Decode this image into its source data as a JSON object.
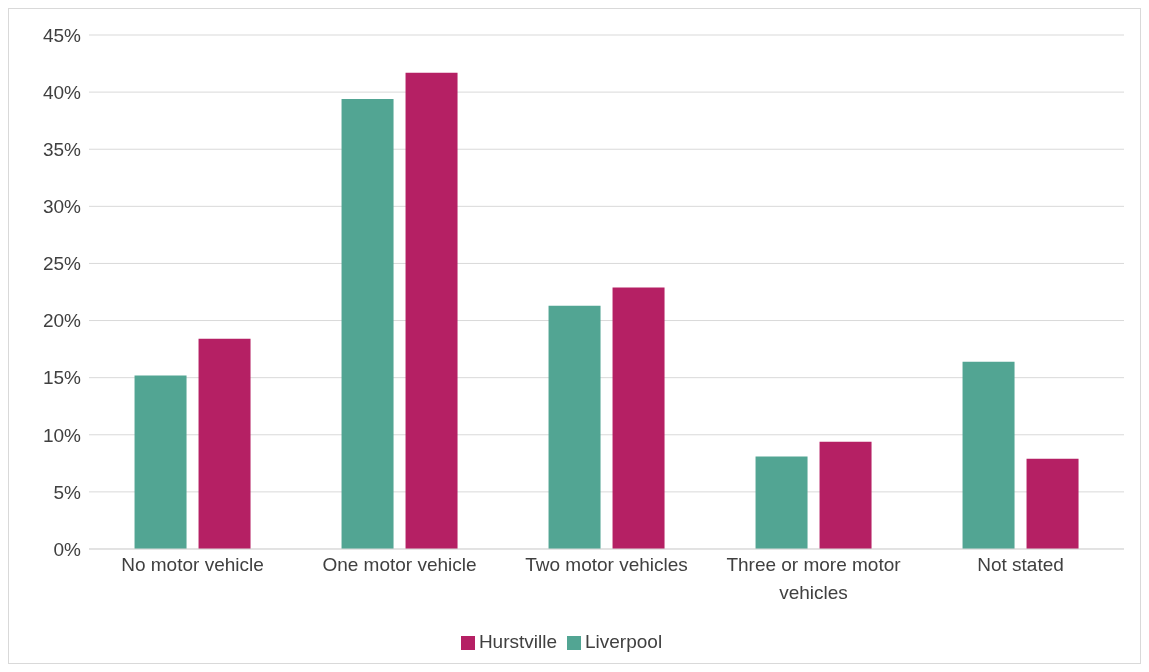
{
  "chart_data": {
    "type": "bar",
    "categories": [
      "No motor vehicle",
      "One motor vehicle",
      "Two motor vehicles",
      "Three or more motor vehicles",
      "Not stated"
    ],
    "series": [
      {
        "name": "Liverpool",
        "color": "#52a593",
        "values": [
          15.2,
          39.4,
          21.3,
          8.1,
          16.4
        ]
      },
      {
        "name": "Hurstville",
        "color": "#b52064",
        "values": [
          18.4,
          41.7,
          22.9,
          9.4,
          7.9
        ]
      }
    ],
    "ylim": [
      0,
      45
    ],
    "yticks": [
      {
        "value": 0,
        "label": "0%"
      },
      {
        "value": 5,
        "label": "5%"
      },
      {
        "value": 10,
        "label": "10%"
      },
      {
        "value": 15,
        "label": "15%"
      },
      {
        "value": 20,
        "label": "20%"
      },
      {
        "value": 25,
        "label": "25%"
      },
      {
        "value": 30,
        "label": "30%"
      },
      {
        "value": 35,
        "label": "35%"
      },
      {
        "value": 40,
        "label": "40%"
      },
      {
        "value": 45,
        "label": "45%"
      }
    ],
    "grid": "y",
    "legend": "bottom"
  }
}
